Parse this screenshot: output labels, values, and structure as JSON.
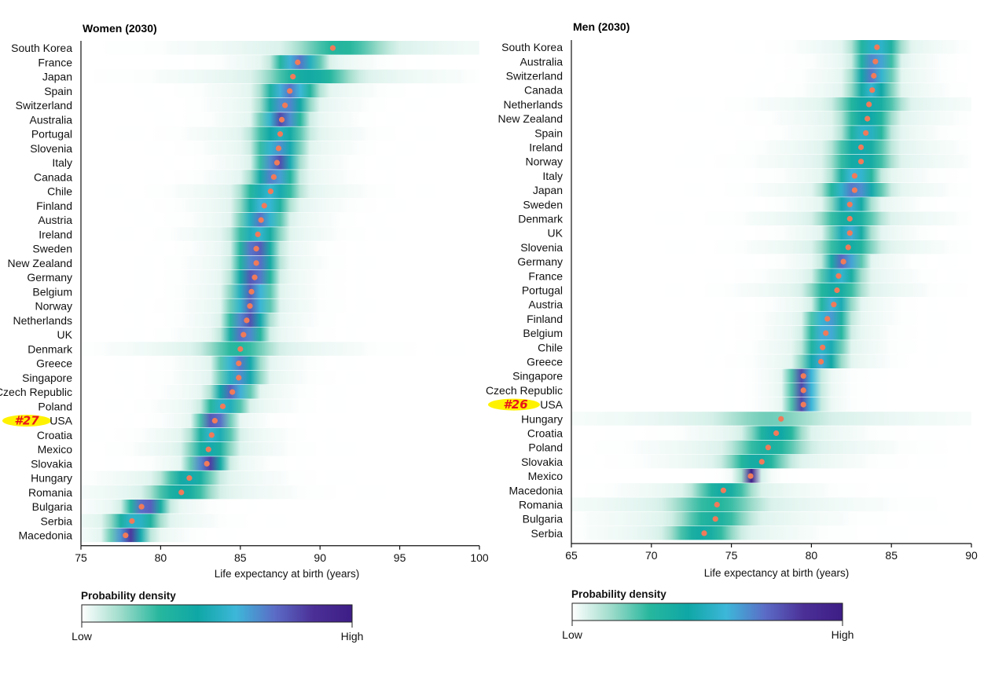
{
  "chart_data": [
    {
      "type": "heatmap",
      "title": "Women (2030)",
      "xlabel": "Life expectancy at birth (years)",
      "xlim": [
        75,
        100
      ],
      "xticks": [
        "75",
        "80",
        "85",
        "90",
        "95",
        "100"
      ],
      "highlight": {
        "country": "USA",
        "rank_label": "#27"
      },
      "rows": [
        {
          "country": "South Korea",
          "value": 90.8,
          "lo": 87.0,
          "hi": 95.5,
          "peak": 0.3
        },
        {
          "country": "France",
          "value": 88.6,
          "lo": 86.8,
          "hi": 90.5,
          "peak": 0.7
        },
        {
          "country": "Japan",
          "value": 88.3,
          "lo": 85.5,
          "hi": 93.0,
          "peak": 0.4
        },
        {
          "country": "Spain",
          "value": 88.1,
          "lo": 86.0,
          "hi": 90.2,
          "peak": 0.7
        },
        {
          "country": "Switzerland",
          "value": 87.8,
          "lo": 86.0,
          "hi": 89.7,
          "peak": 0.7
        },
        {
          "country": "Australia",
          "value": 87.6,
          "lo": 85.9,
          "hi": 89.3,
          "peak": 0.8
        },
        {
          "country": "Portugal",
          "value": 87.5,
          "lo": 85.3,
          "hi": 89.6,
          "peak": 0.5
        },
        {
          "country": "Slovenia",
          "value": 87.4,
          "lo": 85.6,
          "hi": 89.2,
          "peak": 0.65
        },
        {
          "country": "Italy",
          "value": 87.3,
          "lo": 85.8,
          "hi": 88.9,
          "peak": 0.8
        },
        {
          "country": "Canada",
          "value": 87.1,
          "lo": 85.4,
          "hi": 88.8,
          "peak": 0.7
        },
        {
          "country": "Chile",
          "value": 86.9,
          "lo": 84.6,
          "hi": 89.1,
          "peak": 0.55
        },
        {
          "country": "Finland",
          "value": 86.5,
          "lo": 84.6,
          "hi": 88.4,
          "peak": 0.6
        },
        {
          "country": "Austria",
          "value": 86.3,
          "lo": 84.6,
          "hi": 88.0,
          "peak": 0.7
        },
        {
          "country": "Ireland",
          "value": 86.1,
          "lo": 84.2,
          "hi": 88.0,
          "peak": 0.55
        },
        {
          "country": "Sweden",
          "value": 86.0,
          "lo": 84.5,
          "hi": 87.5,
          "peak": 0.8
        },
        {
          "country": "New Zealand",
          "value": 86.0,
          "lo": 84.4,
          "hi": 87.6,
          "peak": 0.75
        },
        {
          "country": "Germany",
          "value": 85.9,
          "lo": 84.3,
          "hi": 87.4,
          "peak": 0.8
        },
        {
          "country": "Belgium",
          "value": 85.7,
          "lo": 84.1,
          "hi": 87.3,
          "peak": 0.75
        },
        {
          "country": "Norway",
          "value": 85.6,
          "lo": 84.0,
          "hi": 87.3,
          "peak": 0.75
        },
        {
          "country": "Netherlands",
          "value": 85.4,
          "lo": 83.9,
          "hi": 87.0,
          "peak": 0.8
        },
        {
          "country": "UK",
          "value": 85.2,
          "lo": 83.7,
          "hi": 86.8,
          "peak": 0.75
        },
        {
          "country": "Denmark",
          "value": 85.0,
          "lo": 81.8,
          "hi": 88.0,
          "peak": 0.3
        },
        {
          "country": "Greece",
          "value": 84.9,
          "lo": 83.3,
          "hi": 86.5,
          "peak": 0.7
        },
        {
          "country": "Singapore",
          "value": 84.9,
          "lo": 83.3,
          "hi": 86.6,
          "peak": 0.65
        },
        {
          "country": "Czech Republic",
          "value": 84.5,
          "lo": 83.0,
          "hi": 86.0,
          "peak": 0.75
        },
        {
          "country": "Poland",
          "value": 83.9,
          "lo": 82.4,
          "hi": 85.6,
          "peak": 0.55
        },
        {
          "country": "USA",
          "value": 83.4,
          "lo": 82.2,
          "hi": 84.6,
          "peak": 0.85
        },
        {
          "country": "Croatia",
          "value": 83.2,
          "lo": 81.6,
          "hi": 85.0,
          "peak": 0.55
        },
        {
          "country": "Mexico",
          "value": 83.0,
          "lo": 81.2,
          "hi": 85.0,
          "peak": 0.45
        },
        {
          "country": "Slovakia",
          "value": 82.9,
          "lo": 81.6,
          "hi": 84.3,
          "peak": 0.85
        },
        {
          "country": "Hungary",
          "value": 81.8,
          "lo": 79.6,
          "hi": 84.0,
          "peak": 0.45
        },
        {
          "country": "Romania",
          "value": 81.3,
          "lo": 78.6,
          "hi": 84.0,
          "peak": 0.4
        },
        {
          "country": "Bulgaria",
          "value": 78.8,
          "lo": 77.6,
          "hi": 80.6,
          "peak": 0.8
        },
        {
          "country": "Serbia",
          "value": 78.2,
          "lo": 76.4,
          "hi": 80.4,
          "peak": 0.55
        },
        {
          "country": "Macedonia",
          "value": 77.8,
          "lo": 76.6,
          "hi": 79.4,
          "peak": 0.85
        }
      ]
    },
    {
      "type": "heatmap",
      "title": "Men (2030)",
      "xlabel": "Life expectancy at birth (years)",
      "xlim": [
        65,
        90
      ],
      "xticks": [
        "65",
        "70",
        "75",
        "80",
        "85",
        "90"
      ],
      "highlight": {
        "country": "USA",
        "rank_label": "#26"
      },
      "rows": [
        {
          "country": "South Korea",
          "value": 84.1,
          "lo": 82.2,
          "hi": 86.0,
          "peak": 0.55
        },
        {
          "country": "Australia",
          "value": 84.0,
          "lo": 82.5,
          "hi": 85.5,
          "peak": 0.7
        },
        {
          "country": "Switzerland",
          "value": 83.9,
          "lo": 82.3,
          "hi": 85.4,
          "peak": 0.7
        },
        {
          "country": "Canada",
          "value": 83.8,
          "lo": 82.1,
          "hi": 85.5,
          "peak": 0.55
        },
        {
          "country": "Netherlands",
          "value": 83.6,
          "lo": 81.0,
          "hi": 86.2,
          "peak": 0.45
        },
        {
          "country": "New Zealand",
          "value": 83.5,
          "lo": 81.4,
          "hi": 85.6,
          "peak": 0.45
        },
        {
          "country": "Spain",
          "value": 83.4,
          "lo": 81.6,
          "hi": 85.2,
          "peak": 0.55
        },
        {
          "country": "Ireland",
          "value": 83.1,
          "lo": 80.8,
          "hi": 85.4,
          "peak": 0.45
        },
        {
          "country": "Norway",
          "value": 83.1,
          "lo": 80.6,
          "hi": 85.6,
          "peak": 0.45
        },
        {
          "country": "Italy",
          "value": 82.7,
          "lo": 81.0,
          "hi": 84.5,
          "peak": 0.6
        },
        {
          "country": "Japan",
          "value": 82.7,
          "lo": 80.4,
          "hi": 85.0,
          "peak": 0.7
        },
        {
          "country": "Sweden",
          "value": 82.4,
          "lo": 80.9,
          "hi": 84.0,
          "peak": 0.6
        },
        {
          "country": "Denmark",
          "value": 82.4,
          "lo": 79.8,
          "hi": 85.0,
          "peak": 0.4
        },
        {
          "country": "UK",
          "value": 82.4,
          "lo": 80.8,
          "hi": 84.0,
          "peak": 0.6
        },
        {
          "country": "Slovenia",
          "value": 82.3,
          "lo": 79.9,
          "hi": 84.7,
          "peak": 0.4
        },
        {
          "country": "Germany",
          "value": 82.0,
          "lo": 80.6,
          "hi": 83.5,
          "peak": 0.75
        },
        {
          "country": "France",
          "value": 81.7,
          "lo": 80.0,
          "hi": 83.5,
          "peak": 0.55
        },
        {
          "country": "Portugal",
          "value": 81.6,
          "lo": 79.2,
          "hi": 83.8,
          "peak": 0.4
        },
        {
          "country": "Austria",
          "value": 81.4,
          "lo": 80.0,
          "hi": 82.8,
          "peak": 0.6
        },
        {
          "country": "Finland",
          "value": 81.0,
          "lo": 79.5,
          "hi": 82.6,
          "peak": 0.65
        },
        {
          "country": "Belgium",
          "value": 80.9,
          "lo": 79.4,
          "hi": 82.5,
          "peak": 0.65
        },
        {
          "country": "Chile",
          "value": 80.7,
          "lo": 79.2,
          "hi": 82.4,
          "peak": 0.55
        },
        {
          "country": "Greece",
          "value": 80.6,
          "lo": 79.0,
          "hi": 82.2,
          "peak": 0.6
        },
        {
          "country": "Singapore",
          "value": 79.5,
          "lo": 78.5,
          "hi": 80.6,
          "peak": 0.85
        },
        {
          "country": "Czech Republic",
          "value": 79.5,
          "lo": 78.5,
          "hi": 80.6,
          "peak": 0.85
        },
        {
          "country": "USA",
          "value": 79.5,
          "lo": 78.5,
          "hi": 80.6,
          "peak": 0.85
        },
        {
          "country": "Hungary",
          "value": 78.1,
          "lo": 72.5,
          "hi": 82.5,
          "peak": 0.2
        },
        {
          "country": "Croatia",
          "value": 77.8,
          "lo": 75.5,
          "hi": 80.0,
          "peak": 0.45
        },
        {
          "country": "Poland",
          "value": 77.3,
          "lo": 74.2,
          "hi": 80.5,
          "peak": 0.35
        },
        {
          "country": "Slovakia",
          "value": 76.9,
          "lo": 74.0,
          "hi": 79.2,
          "peak": 0.4
        },
        {
          "country": "Mexico",
          "value": 76.2,
          "lo": 75.6,
          "hi": 76.8,
          "peak": 1.0
        },
        {
          "country": "Macedonia",
          "value": 74.5,
          "lo": 72.0,
          "hi": 77.0,
          "peak": 0.4
        },
        {
          "country": "Romania",
          "value": 74.1,
          "lo": 70.0,
          "hi": 78.0,
          "peak": 0.3
        },
        {
          "country": "Bulgaria",
          "value": 74.0,
          "lo": 70.8,
          "hi": 77.0,
          "peak": 0.35
        },
        {
          "country": "Serbia",
          "value": 73.3,
          "lo": 70.4,
          "hi": 76.0,
          "peak": 0.4
        }
      ]
    }
  ],
  "legend": {
    "title": "Probability density",
    "low_label": "Low",
    "high_label": "High",
    "colors": [
      "#ffffff",
      "#9fdccb",
      "#27b79e",
      "#0fa7a6",
      "#3db7d9",
      "#5b6cc6",
      "#4b2f97",
      "#3d1d86"
    ]
  },
  "colors": {
    "point": "#f07a5a",
    "highlight": "#fff200",
    "highlight_text": "#e8131b",
    "gridline": "#d8d8d8",
    "axis": "#111111"
  }
}
